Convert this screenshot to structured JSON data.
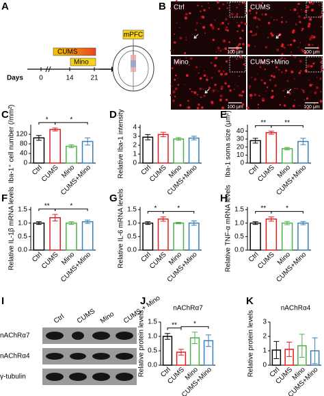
{
  "panel_a": {
    "label": "A",
    "cums": "CUMS",
    "mino": "Mino",
    "days": "Days",
    "day_ticks": [
      0,
      14,
      21
    ],
    "region": "mPFC"
  },
  "panel_b": {
    "label": "B",
    "images": [
      "Ctrl",
      "CUMS",
      "Mino",
      "CUMS+Mino"
    ],
    "scale_bar": "100 μm"
  },
  "panel_i": {
    "label": "I",
    "lanes": [
      "Ctrl",
      "CUMS",
      "Mino",
      "CUMS + Mino"
    ],
    "proteins": [
      "nAChRα7",
      "nAChRα4",
      "γ-tubulin"
    ]
  },
  "chart_data": [
    {
      "type": "bar",
      "label": "C",
      "ylabel": "Iba-1⁺ cell number (/mm²)",
      "categories": [
        "Ctrl",
        "CUMS",
        "Mino",
        "CUMS+Mino"
      ],
      "values": [
        105,
        140,
        70,
        90
      ],
      "errors": [
        10,
        6,
        6,
        15
      ],
      "colors": [
        "#000000",
        "#e41a1c",
        "#4daf4a",
        "#377eb8"
      ],
      "ylim": [
        0,
        160
      ],
      "yticks": [
        0,
        40,
        80,
        120
      ],
      "significance": [
        {
          "between": [
            "Ctrl",
            "CUMS"
          ],
          "label": "*"
        },
        {
          "between": [
            "CUMS",
            "CUMS+Mino"
          ],
          "label": "*"
        }
      ]
    },
    {
      "type": "bar",
      "label": "D",
      "ylabel": "Relative Iba-1 intensity",
      "categories": [
        "Ctrl",
        "CUMS",
        "Mino",
        "CUMS+Mino"
      ],
      "values": [
        2.9,
        3.2,
        2.7,
        2.8
      ],
      "errors": [
        0.3,
        0.25,
        0.15,
        0.2
      ],
      "colors": [
        "#000000",
        "#e41a1c",
        "#4daf4a",
        "#377eb8"
      ],
      "ylim": [
        0,
        4.3
      ],
      "yticks": [
        0,
        1,
        2,
        3,
        4
      ],
      "significance": []
    },
    {
      "type": "bar",
      "label": "E",
      "ylabel": "Iba-1 soma size (μm²)",
      "categories": [
        "Ctrl",
        "CUMS",
        "Mino",
        "CUMS+Mino"
      ],
      "values": [
        28,
        38,
        18,
        27
      ],
      "errors": [
        3,
        2,
        1.5,
        4
      ],
      "colors": [
        "#000000",
        "#e41a1c",
        "#4daf4a",
        "#377eb8"
      ],
      "ylim": [
        0,
        48
      ],
      "yticks": [
        0,
        10,
        20,
        30,
        40
      ],
      "significance": [
        {
          "between": [
            "Ctrl",
            "CUMS"
          ],
          "label": "**"
        },
        {
          "between": [
            "CUMS",
            "CUMS+Mino"
          ],
          "label": "**"
        }
      ]
    },
    {
      "type": "bar",
      "label": "F",
      "ylabel": "Relative IL-1β mRNA levels",
      "categories": [
        "Ctrl",
        "CUMS",
        "Mino",
        "CUMS+Mino"
      ],
      "values": [
        1.0,
        1.2,
        1.0,
        1.05
      ],
      "errors": [
        0.05,
        0.12,
        0.05,
        0.06
      ],
      "colors": [
        "#000000",
        "#e41a1c",
        "#4daf4a",
        "#377eb8"
      ],
      "ylim": [
        0,
        1.6
      ],
      "yticks": [
        {
          "value": 0,
          "label": "0.0"
        },
        0.5,
        {
          "value": 1,
          "label": "1.0"
        },
        1.5
      ],
      "significance": [
        {
          "between": [
            "Ctrl",
            "CUMS"
          ],
          "label": "**"
        },
        {
          "between": [
            "CUMS",
            "CUMS+Mino"
          ],
          "label": "*"
        }
      ]
    },
    {
      "type": "bar",
      "label": "G",
      "ylabel": "Relative IL-6 mRNA levels",
      "categories": [
        "Ctrl",
        "CUMS",
        "Mino",
        "CUMS+Mino"
      ],
      "values": [
        1.0,
        1.15,
        1.0,
        1.0
      ],
      "errors": [
        0.05,
        0.08,
        0.03,
        0.08
      ],
      "colors": [
        "#000000",
        "#e41a1c",
        "#4daf4a",
        "#377eb8"
      ],
      "ylim": [
        0,
        1.6
      ],
      "yticks": [
        {
          "value": 0,
          "label": "0.0"
        },
        0.5,
        {
          "value": 1,
          "label": "1.0"
        },
        1.5
      ],
      "significance": [
        {
          "between": [
            "Ctrl",
            "CUMS"
          ],
          "label": "*"
        },
        {
          "between": [
            "CUMS",
            "CUMS+Mino"
          ],
          "label": "*"
        }
      ]
    },
    {
      "type": "bar",
      "label": "H",
      "ylabel": "Relative TNF-α mRNA levels",
      "categories": [
        "Ctrl",
        "CUMS",
        "Mino",
        "CUMS+Mino"
      ],
      "values": [
        1.0,
        1.15,
        1.0,
        1.0
      ],
      "errors": [
        0.05,
        0.08,
        0.06,
        0.06
      ],
      "colors": [
        "#000000",
        "#e41a1c",
        "#4daf4a",
        "#377eb8"
      ],
      "ylim": [
        0,
        1.6
      ],
      "yticks": [
        {
          "value": 0,
          "label": "0.0"
        },
        0.5,
        {
          "value": 1,
          "label": "1.0"
        },
        1.5
      ],
      "significance": [
        {
          "between": [
            "Ctrl",
            "CUMS"
          ],
          "label": "**"
        },
        {
          "between": [
            "CUMS",
            "CUMS+Mino"
          ],
          "label": "*"
        }
      ]
    },
    {
      "type": "bar",
      "label": "J",
      "title": "nAChRα7",
      "ylabel": "Relative protein levels",
      "categories": [
        "Ctrl",
        "CUMS",
        "Mino",
        "CUMS+Mino"
      ],
      "values": [
        1.0,
        0.45,
        0.95,
        0.85
      ],
      "errors": [
        0.1,
        0.1,
        0.2,
        0.2
      ],
      "colors": [
        "#000000",
        "#e41a1c",
        "#4daf4a",
        "#377eb8"
      ],
      "ylim": [
        0,
        1.5
      ],
      "yticks": [
        {
          "value": 0,
          "label": "0.0"
        },
        0.5,
        {
          "value": 1,
          "label": "1.0"
        },
        1.5
      ],
      "significance": [
        {
          "between": [
            "Ctrl",
            "CUMS"
          ],
          "label": "**"
        },
        {
          "between": [
            "CUMS",
            "CUMS+Mino"
          ],
          "label": "*"
        }
      ]
    },
    {
      "type": "bar",
      "label": "K",
      "title": "nAChRα4",
      "ylabel": "Relative protein levels",
      "categories": [
        "Ctrl",
        "CUMS",
        "Mino",
        "CUMS+Mino"
      ],
      "values": [
        1.05,
        1.1,
        1.35,
        1.0
      ],
      "errors": [
        0.6,
        0.5,
        0.8,
        0.9
      ],
      "colors": [
        "#000000",
        "#e41a1c",
        "#4daf4a",
        "#377eb8"
      ],
      "ylim": [
        0,
        3
      ],
      "yticks": [
        0,
        1,
        2,
        3
      ],
      "significance": []
    }
  ]
}
